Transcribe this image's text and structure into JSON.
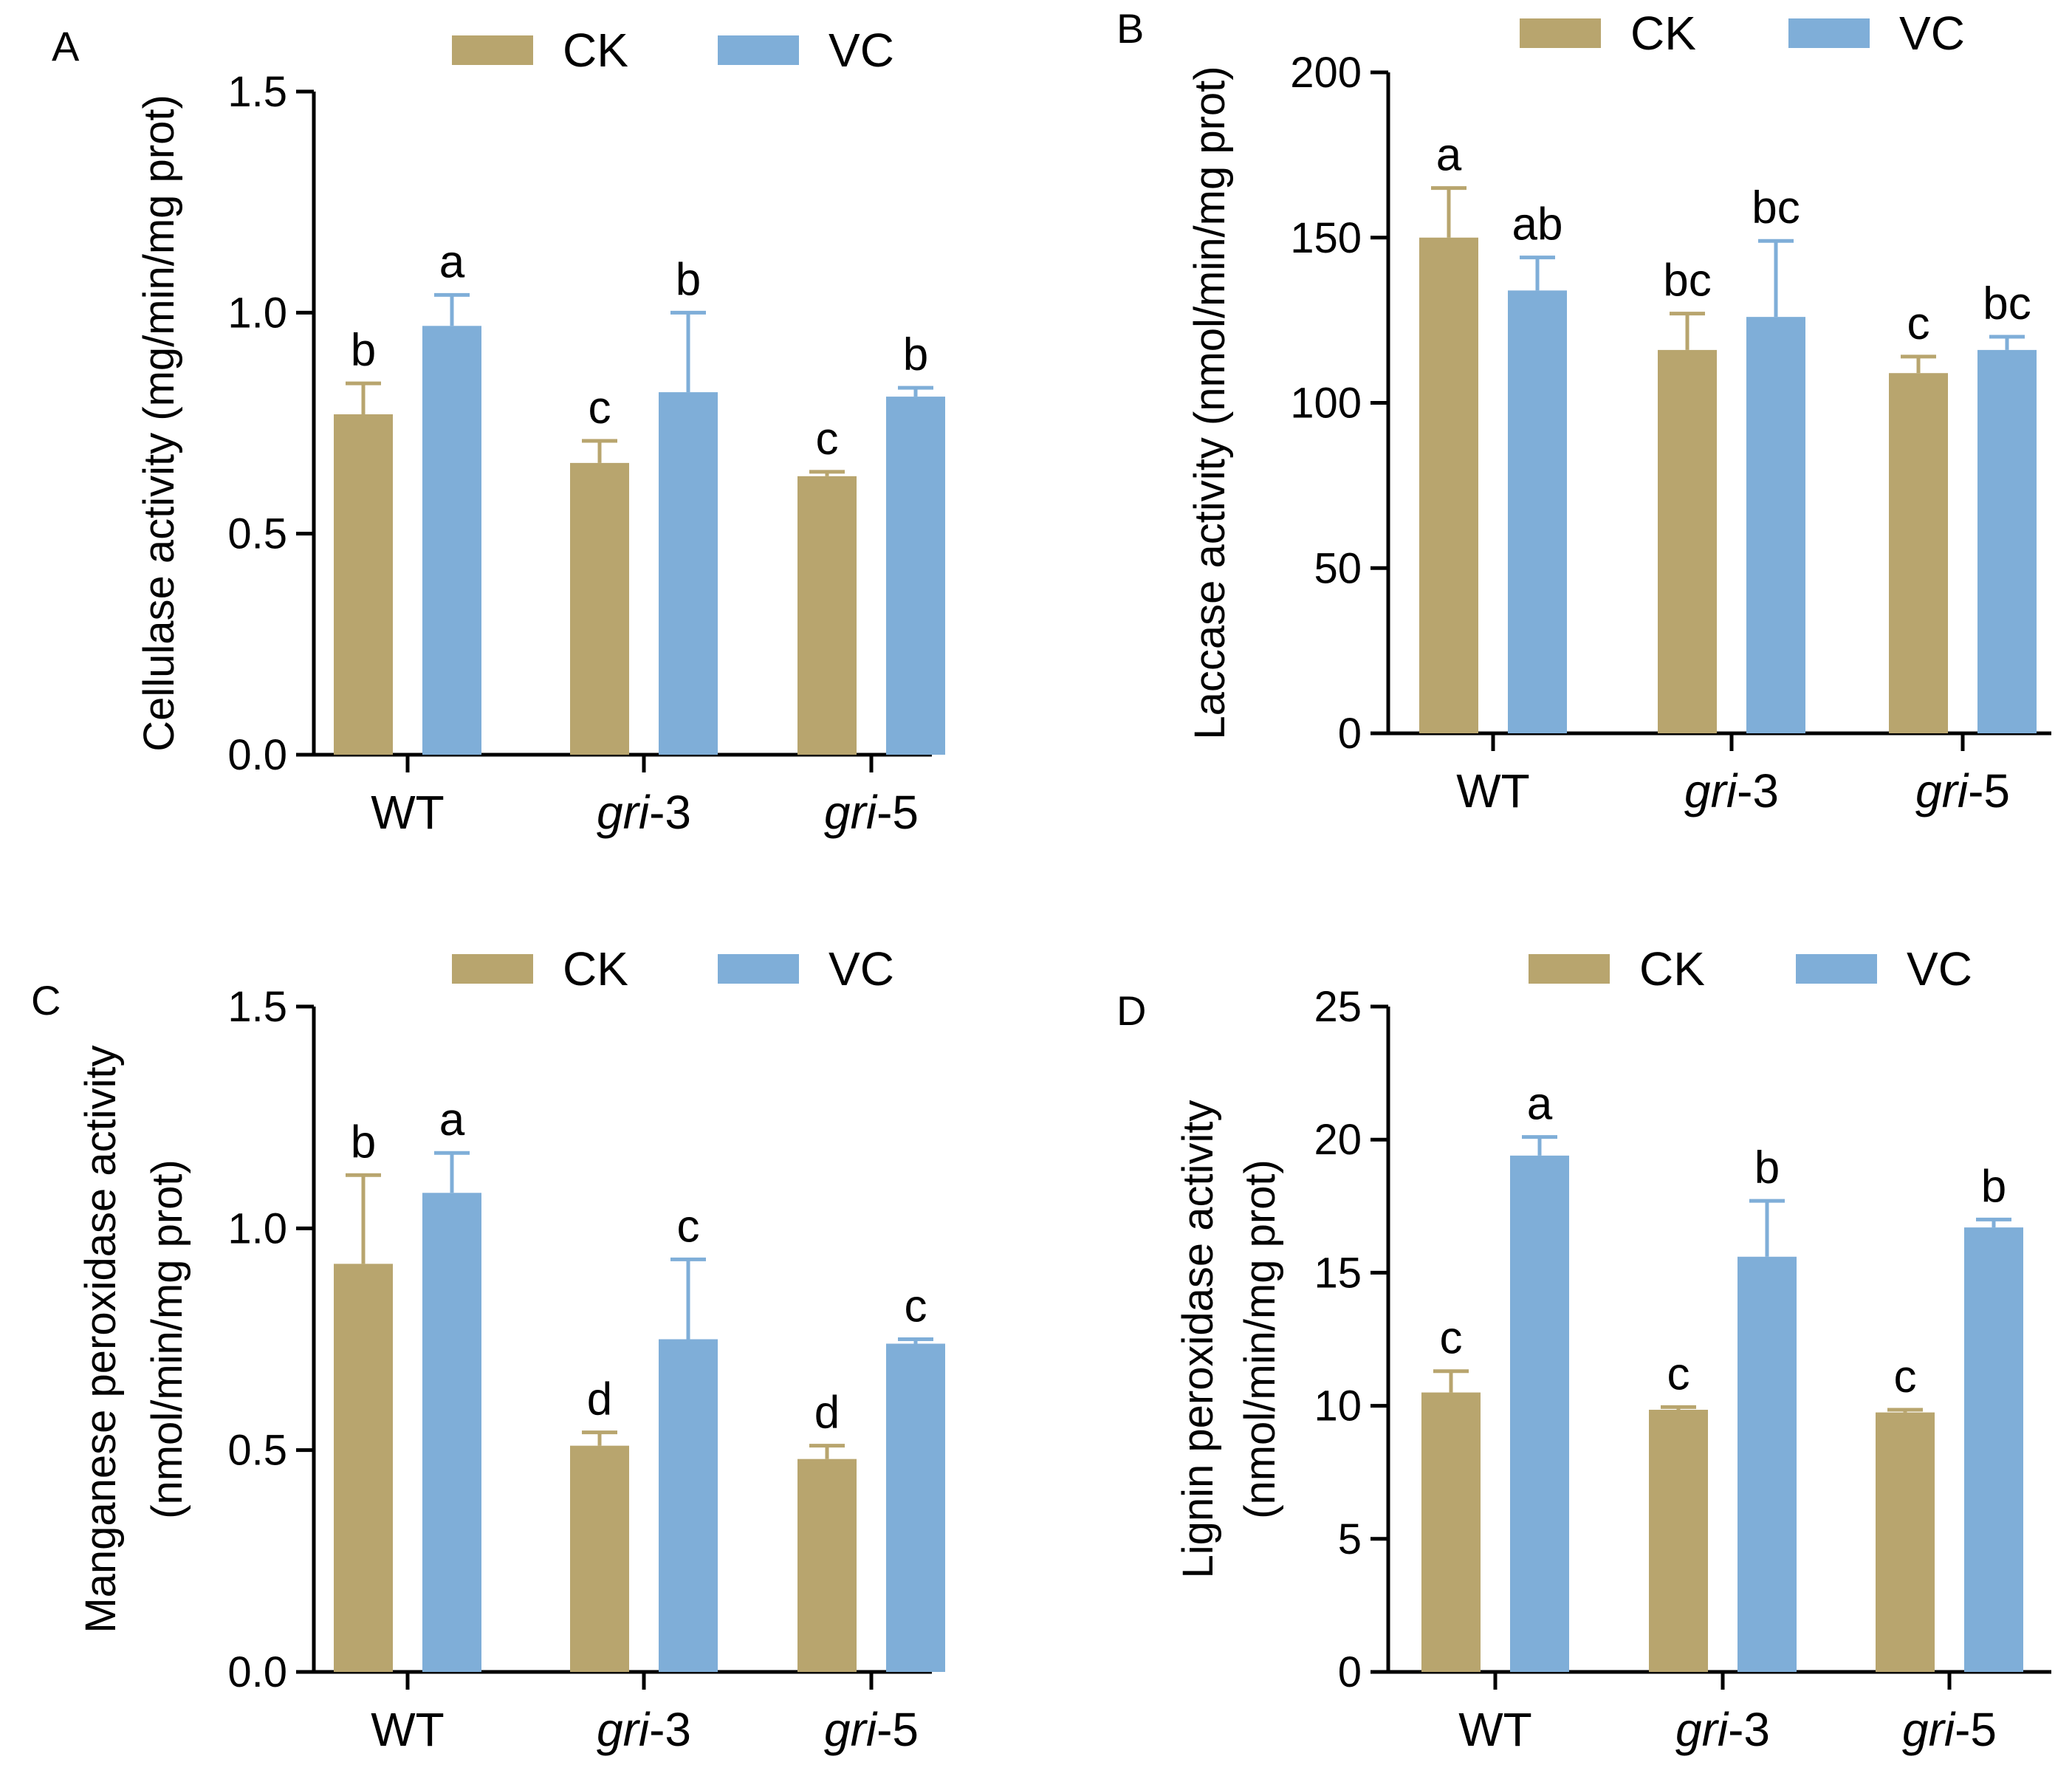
{
  "figure": {
    "legend": {
      "ck": "CK",
      "vc": "VC"
    },
    "colors": {
      "CK": "#B8A56E",
      "VC": "#7FAED8"
    }
  },
  "chart_data": [
    {
      "type": "bar",
      "panel": "A",
      "ylabel": [
        "Cellulase activity (mg/min/mg prot)"
      ],
      "ylim": [
        0,
        1.5
      ],
      "yticks": [
        "0.0",
        "0.5",
        "1.0",
        "1.5"
      ],
      "ytick_values": [
        0,
        0.5,
        1.0,
        1.5
      ],
      "categories": [
        {
          "italic": "",
          "plain": "WT"
        },
        {
          "italic": "gri",
          "plain": "-3"
        },
        {
          "italic": "gri",
          "plain": "-5"
        }
      ],
      "series": [
        {
          "name": "CK",
          "values": [
            0.77,
            0.66,
            0.63
          ],
          "errors": [
            0.07,
            0.05,
            0.01
          ],
          "labels": [
            "b",
            "c",
            "c"
          ]
        },
        {
          "name": "VC",
          "values": [
            0.97,
            0.82,
            0.81
          ],
          "errors": [
            0.07,
            0.18,
            0.02
          ],
          "labels": [
            "a",
            "b",
            "b"
          ]
        }
      ]
    },
    {
      "type": "bar",
      "panel": "B",
      "ylabel": [
        "Laccase activity (nmol/min/mg prot)"
      ],
      "ylim": [
        0,
        200
      ],
      "yticks": [
        "0",
        "50",
        "100",
        "150",
        "200"
      ],
      "ytick_values": [
        0,
        50,
        100,
        150,
        200
      ],
      "categories": [
        {
          "italic": "",
          "plain": "WT"
        },
        {
          "italic": "gri",
          "plain": "-3"
        },
        {
          "italic": "gri",
          "plain": "-5"
        }
      ],
      "series": [
        {
          "name": "CK",
          "values": [
            150,
            116,
            109
          ],
          "errors": [
            15,
            11,
            5
          ],
          "labels": [
            "a",
            "bc",
            "c"
          ]
        },
        {
          "name": "VC",
          "values": [
            134,
            126,
            116
          ],
          "errors": [
            10,
            23,
            4
          ],
          "labels": [
            "ab",
            "bc",
            "bc"
          ]
        }
      ]
    },
    {
      "type": "bar",
      "panel": "C",
      "ylabel": [
        "Manganese peroxidase activity",
        "(nmol/min/mg prot)"
      ],
      "ylim": [
        0,
        1.5
      ],
      "yticks": [
        "0.0",
        "0.5",
        "1.0",
        "1.5"
      ],
      "ytick_values": [
        0,
        0.5,
        1.0,
        1.5
      ],
      "categories": [
        {
          "italic": "",
          "plain": "WT"
        },
        {
          "italic": "gri",
          "plain": "-3"
        },
        {
          "italic": "gri",
          "plain": "-5"
        }
      ],
      "series": [
        {
          "name": "CK",
          "values": [
            0.92,
            0.51,
            0.48
          ],
          "errors": [
            0.2,
            0.03,
            0.03
          ],
          "labels": [
            "b",
            "d",
            "d"
          ]
        },
        {
          "name": "VC",
          "values": [
            1.08,
            0.75,
            0.74
          ],
          "errors": [
            0.09,
            0.18,
            0.01
          ],
          "labels": [
            "a",
            "c",
            "c"
          ]
        }
      ]
    },
    {
      "type": "bar",
      "panel": "D",
      "ylabel": [
        "Lignin peroxidase activity",
        "(nmol/min/mg prot)"
      ],
      "ylim": [
        0,
        25
      ],
      "yticks": [
        "0",
        "5",
        "10",
        "15",
        "20",
        "25"
      ],
      "ytick_values": [
        0,
        5,
        10,
        15,
        20,
        25
      ],
      "categories": [
        {
          "italic": "",
          "plain": "WT"
        },
        {
          "italic": "gri",
          "plain": "-3"
        },
        {
          "italic": "gri",
          "plain": "-5"
        }
      ],
      "series": [
        {
          "name": "CK",
          "values": [
            10.5,
            9.85,
            9.75
          ],
          "errors": [
            0.8,
            0.1,
            0.1
          ],
          "labels": [
            "c",
            "c",
            "c"
          ]
        },
        {
          "name": "VC",
          "values": [
            19.4,
            15.6,
            16.7
          ],
          "errors": [
            0.7,
            2.1,
            0.3
          ],
          "labels": [
            "a",
            "b",
            "b"
          ]
        }
      ]
    }
  ]
}
